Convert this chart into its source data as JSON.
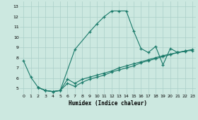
{
  "xlabel": "Humidex (Indice chaleur)",
  "bg_color": "#cce8e0",
  "grid_color": "#aacfc8",
  "line_color": "#1a7a6a",
  "xlim": [
    -0.5,
    23.5
  ],
  "ylim": [
    4.5,
    13.5
  ],
  "xticks": [
    0,
    1,
    2,
    3,
    4,
    5,
    6,
    7,
    8,
    9,
    10,
    11,
    12,
    13,
    14,
    15,
    16,
    17,
    18,
    19,
    20,
    21,
    22,
    23
  ],
  "yticks": [
    5,
    6,
    7,
    8,
    9,
    10,
    11,
    12,
    13
  ],
  "line1_x": [
    0,
    1,
    2,
    3,
    4,
    5,
    7,
    9,
    10,
    11,
    12,
    13,
    14,
    15,
    16,
    17,
    18,
    19,
    20,
    21,
    22
  ],
  "line1_y": [
    7.7,
    6.1,
    5.1,
    4.8,
    4.7,
    4.8,
    8.8,
    10.5,
    11.3,
    12.0,
    12.55,
    12.55,
    12.55,
    10.6,
    8.9,
    8.5,
    9.1,
    7.3,
    8.9,
    8.5,
    8.6
  ],
  "line2_x": [
    2,
    3,
    4,
    5,
    6,
    7,
    8,
    9,
    10,
    11,
    12,
    13,
    14,
    15,
    16,
    17,
    18,
    19,
    20,
    21,
    22,
    23
  ],
  "line2_y": [
    5.1,
    4.8,
    4.7,
    4.8,
    5.9,
    5.5,
    5.9,
    6.1,
    6.3,
    6.5,
    6.7,
    7.0,
    7.2,
    7.4,
    7.6,
    7.8,
    8.0,
    8.2,
    8.35,
    8.5,
    8.65,
    8.8
  ],
  "line3_x": [
    2,
    3,
    4,
    5,
    6,
    7,
    8,
    9,
    10,
    11,
    12,
    13,
    14,
    15,
    16,
    17,
    18,
    19,
    20,
    21,
    22,
    23
  ],
  "line3_y": [
    5.1,
    4.8,
    4.7,
    4.8,
    5.5,
    5.2,
    5.6,
    5.9,
    6.1,
    6.3,
    6.6,
    6.8,
    7.0,
    7.2,
    7.5,
    7.7,
    7.9,
    8.1,
    8.3,
    8.5,
    8.65,
    8.7
  ]
}
